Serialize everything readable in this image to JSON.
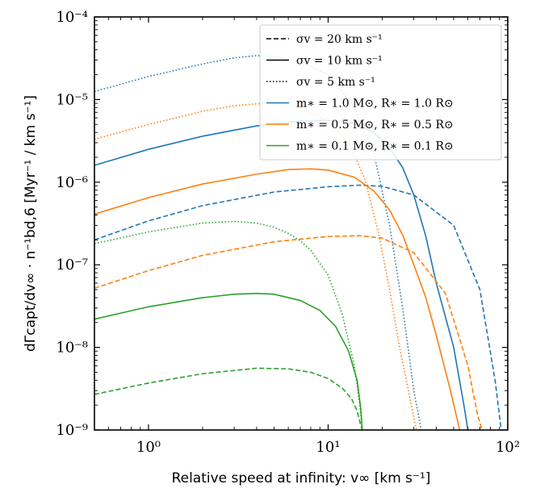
{
  "chart_data": {
    "type": "line",
    "x_scale": "log",
    "y_scale": "log",
    "xlim": [
      0.5,
      100
    ],
    "ylim": [
      1e-09,
      0.0001
    ],
    "xlabel": "Relative speed at infinity: v∞ [km s⁻¹]",
    "ylabel": "dΓcapt/dv∞ · n⁻¹bd,6 [Myr⁻¹ / km s⁻¹]",
    "x_tick_labels": [
      {
        "value": 1,
        "label": "10⁰"
      },
      {
        "value": 10,
        "label": "10¹"
      },
      {
        "value": 100,
        "label": "10²"
      }
    ],
    "y_tick_labels": [
      {
        "value": 1e-09,
        "label": "10⁻⁹"
      },
      {
        "value": 1e-08,
        "label": "10⁻⁸"
      },
      {
        "value": 1e-07,
        "label": "10⁻⁷"
      },
      {
        "value": 1e-06,
        "label": "10⁻⁶"
      },
      {
        "value": 1e-05,
        "label": "10⁻⁵"
      },
      {
        "value": 0.0001,
        "label": "10⁻⁴"
      }
    ],
    "legend": {
      "placement": "top-right",
      "entries": [
        {
          "label": "σv = 20 km s⁻¹",
          "style": "dashed",
          "color": "#000000"
        },
        {
          "label": "σv = 10 km s⁻¹",
          "style": "solid",
          "color": "#000000"
        },
        {
          "label": "σv = 5 km s⁻¹",
          "style": "dotted",
          "color": "#000000"
        },
        {
          "label": "m∗ = 1.0 M⊙, R∗ = 1.0 R⊙",
          "style": "solid",
          "color": "#1f77b4"
        },
        {
          "label": "m∗ = 0.5 M⊙, R∗ = 0.5 R⊙",
          "style": "solid",
          "color": "#ff7f0e"
        },
        {
          "label": "m∗ = 0.1 M⊙, R∗ = 0.1 R⊙",
          "style": "solid",
          "color": "#2ca02c"
        }
      ]
    },
    "series": [
      {
        "name": "m=1.0, σv=20",
        "color": "#1f77b4",
        "style": "dashed",
        "x": [
          0.5,
          1,
          2,
          5,
          10,
          15,
          20,
          30,
          50,
          70,
          85,
          92
        ],
        "y": [
          2e-07,
          3.4e-07,
          5.2e-07,
          7.6e-07,
          8.8e-07,
          9.2e-07,
          8.9e-07,
          7e-07,
          3e-07,
          5e-08,
          4e-09,
          1e-09
        ]
      },
      {
        "name": "m=1.0, σv=10",
        "color": "#1f77b4",
        "style": "solid",
        "x": [
          0.5,
          1,
          2,
          4,
          7,
          10,
          14,
          18,
          22,
          26,
          30,
          35,
          40,
          50,
          57,
          60
        ],
        "y": [
          1.6e-06,
          2.5e-06,
          3.6e-06,
          4.8e-06,
          5.5e-06,
          5.6e-06,
          5.1e-06,
          4e-06,
          2.6e-06,
          1.5e-06,
          7e-07,
          2.2e-07,
          6e-08,
          1e-08,
          2e-09,
          1e-09
        ]
      },
      {
        "name": "m=1.0, σv=5",
        "color": "#1f77b4",
        "style": "dotted",
        "x": [
          0.5,
          1,
          2,
          3,
          4,
          5,
          7,
          10,
          14,
          18,
          22,
          26,
          30,
          33
        ],
        "y": [
          1.25e-05,
          1.9e-05,
          2.7e-05,
          3.2e-05,
          3.4e-05,
          3.3e-05,
          2.9e-05,
          2e-05,
          8e-06,
          2.2e-06,
          3e-07,
          3e-08,
          3e-09,
          1e-09
        ]
      },
      {
        "name": "m=0.5, σv=20",
        "color": "#ff7f0e",
        "style": "dashed",
        "x": [
          0.5,
          1,
          2,
          5,
          10,
          15,
          20,
          30,
          45,
          60,
          68,
          72
        ],
        "y": [
          5.2e-08,
          8.5e-08,
          1.3e-07,
          1.9e-07,
          2.2e-07,
          2.25e-07,
          2.1e-07,
          1.4e-07,
          4.5e-08,
          6e-09,
          1.5e-09,
          1e-09
        ]
      },
      {
        "name": "m=0.5, σv=10",
        "color": "#ff7f0e",
        "style": "solid",
        "x": [
          0.5,
          1,
          2,
          4,
          6,
          8,
          10,
          14,
          18,
          22,
          26,
          30,
          35,
          40,
          48,
          54
        ],
        "y": [
          4.1e-07,
          6.5e-07,
          9.5e-07,
          1.25e-06,
          1.42e-06,
          1.45e-06,
          1.4e-06,
          1.15e-06,
          7.8e-07,
          4.6e-07,
          2.3e-07,
          1e-07,
          4e-08,
          1.4e-08,
          3e-09,
          1e-09
        ]
      },
      {
        "name": "m=0.5, σv=5",
        "color": "#ff7f0e",
        "style": "dotted",
        "x": [
          0.5,
          1,
          2,
          3,
          4,
          5,
          7,
          10,
          13,
          16,
          19,
          22,
          25,
          28,
          31
        ],
        "y": [
          3.3e-06,
          5e-06,
          7.2e-06,
          8.4e-06,
          8.9e-06,
          8.8e-06,
          7.8e-06,
          5.5e-06,
          3e-06,
          1.1e-06,
          2.5e-07,
          5e-08,
          1e-08,
          3e-09,
          1e-09
        ]
      },
      {
        "name": "m=0.1, σv=20",
        "color": "#2ca02c",
        "style": "dashed",
        "x": [
          0.5,
          1,
          2,
          4,
          6,
          8,
          10,
          12,
          13.5,
          14.5,
          15.1,
          15.5
        ],
        "y": [
          2.7e-09,
          3.7e-09,
          4.8e-09,
          5.6e-09,
          5.5e-09,
          5e-09,
          4.2e-09,
          3.2e-09,
          2.4e-09,
          1.7e-09,
          1.2e-09,
          1e-09
        ]
      },
      {
        "name": "m=0.1, σv=10",
        "color": "#2ca02c",
        "style": "solid",
        "x": [
          0.5,
          1,
          2,
          3,
          4,
          5,
          7,
          9,
          11,
          13,
          14.5,
          15.2,
          15.5
        ],
        "y": [
          2.2e-08,
          3.1e-08,
          4e-08,
          4.4e-08,
          4.5e-08,
          4.4e-08,
          3.7e-08,
          2.8e-08,
          1.8e-08,
          9e-09,
          4e-09,
          1.8e-09,
          1e-09
        ]
      },
      {
        "name": "m=0.1, σv=5",
        "color": "#2ca02c",
        "style": "dotted",
        "x": [
          0.5,
          1,
          2,
          3,
          4,
          5,
          6,
          7,
          8,
          10,
          12,
          14,
          15,
          15.5
        ],
        "y": [
          1.8e-07,
          2.5e-07,
          3.2e-07,
          3.35e-07,
          3.2e-07,
          2.85e-07,
          2.4e-07,
          1.95e-07,
          1.5e-07,
          7.5e-08,
          2.5e-08,
          6e-09,
          2e-09,
          1e-09
        ]
      }
    ]
  }
}
